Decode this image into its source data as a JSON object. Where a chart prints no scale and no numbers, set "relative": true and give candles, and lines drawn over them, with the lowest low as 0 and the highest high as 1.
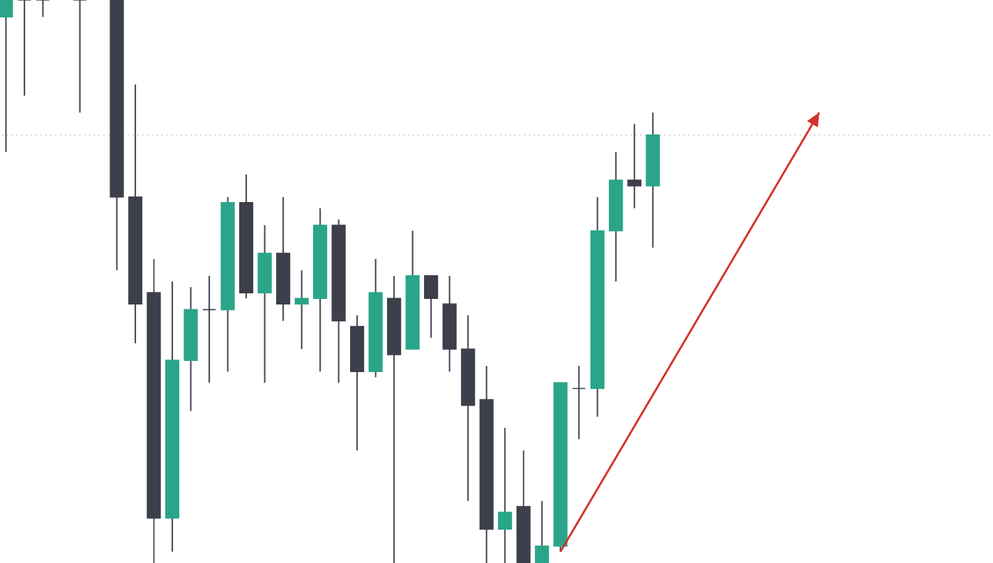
{
  "chart_data": {
    "type": "candlestick",
    "relative": true,
    "categories": [
      null,
      null,
      null,
      null,
      null,
      null,
      null,
      null,
      null,
      null,
      null,
      null,
      null,
      null,
      null,
      null,
      null,
      null,
      null,
      null,
      null,
      null,
      null,
      null,
      null,
      null,
      null,
      null,
      null,
      null,
      null,
      null,
      null,
      null,
      null,
      null,
      null,
      null,
      null,
      null,
      null,
      null,
      null,
      null,
      null
    ],
    "ohlc": [
      [
        0.97,
        1,
        0.73,
        1
      ],
      [
        1,
        1,
        0.83,
        1
      ],
      [
        1,
        1,
        0.97,
        1
      ],
      null,
      [
        1,
        1,
        0.8,
        1
      ],
      null,
      [
        1,
        1,
        0.52,
        0.65
      ],
      [
        0.65,
        0.85,
        0.39,
        0.46
      ],
      [
        0.48,
        0.54,
        0,
        0.08
      ],
      [
        0.08,
        0.5,
        0.02,
        0.36
      ],
      [
        0.36,
        0.49,
        0.27,
        0.45
      ],
      [
        0.45,
        0.51,
        0.32,
        0.45
      ],
      [
        0.45,
        0.65,
        0.34,
        0.64
      ],
      [
        0.64,
        0.69,
        0.47,
        0.48
      ],
      [
        0.48,
        0.6,
        0.32,
        0.55
      ],
      [
        0.55,
        0.65,
        0.43,
        0.46
      ],
      [
        0.46,
        0.52,
        0.38,
        0.47
      ],
      [
        0.47,
        0.63,
        0.34,
        0.6
      ],
      [
        0.6,
        0.61,
        0.32,
        0.43
      ],
      [
        0.42,
        0.44,
        0.2,
        0.34
      ],
      [
        0.34,
        0.54,
        0.33,
        0.48
      ],
      [
        0.47,
        0.51,
        0,
        0.37
      ],
      [
        0.38,
        0.59,
        0.38,
        0.51
      ],
      [
        0.51,
        0.51,
        0.4,
        0.47
      ],
      [
        0.46,
        0.51,
        0.34,
        0.38
      ],
      [
        0.38,
        0.44,
        0.11,
        0.28
      ],
      [
        0.29,
        0.35,
        0,
        0.06
      ],
      [
        0.06,
        0.24,
        0,
        0.09
      ],
      [
        0.1,
        0.2,
        0,
        0
      ],
      [
        0,
        0.11,
        0,
        0.03
      ],
      [
        0.03,
        0.32,
        0.02,
        0.32
      ],
      [
        0.31,
        0.35,
        0.22,
        0.31
      ],
      [
        0.31,
        0.65,
        0.26,
        0.59
      ],
      [
        0.59,
        0.73,
        0.5,
        0.68
      ],
      [
        0.68,
        0.78,
        0.63,
        0.67
      ],
      [
        0.67,
        0.8,
        0.56,
        0.76
      ],
      null,
      null,
      null,
      null,
      null,
      null,
      null,
      null,
      null
    ],
    "colors": [
      "#2aa58a",
      "#3d3f4b",
      "#3d3f4b",
      null,
      "#3d3f4b",
      null,
      "#3d3f4b",
      "#3d3f4b",
      "#3d3f4b",
      "#2aa58a",
      "#2aa58a",
      "#3d3f4b",
      "#2aa58a",
      "#3d3f4b",
      "#2aa58a",
      "#3d3f4b",
      "#2aa58a",
      "#2aa58a",
      "#3d3f4b",
      "#3d3f4b",
      "#2aa58a",
      "#3d3f4b",
      "#2aa58a",
      "#3d3f4b",
      "#3d3f4b",
      "#3d3f4b",
      "#3d3f4b",
      "#2aa58a",
      "#3d3f4b",
      "#2aa58a",
      "#2aa58a",
      "#3d3f4b",
      "#2aa58a",
      "#2aa58a",
      "#3d3f4b",
      "#2aa58a",
      null,
      null,
      null,
      null,
      null,
      null,
      null,
      null,
      null
    ],
    "series": [
      {
        "type": "line",
        "color": "#d0342c",
        "values": [
          null,
          null,
          null,
          null,
          null,
          null,
          null,
          null,
          null,
          null,
          null,
          null,
          null,
          null,
          null,
          null,
          null,
          null,
          null,
          null,
          null,
          null,
          null,
          null,
          null,
          null,
          null,
          null,
          null,
          null,
          0.02,
          null,
          null,
          null,
          null,
          null,
          null,
          null,
          null,
          null,
          null,
          null,
          null,
          null,
          0.8
        ]
      }
    ],
    "ref_lines": [
      {
        "axis": "y",
        "value": 0.76,
        "color": "#c8c8c8",
        "line_style": "dotted"
      }
    ]
  }
}
